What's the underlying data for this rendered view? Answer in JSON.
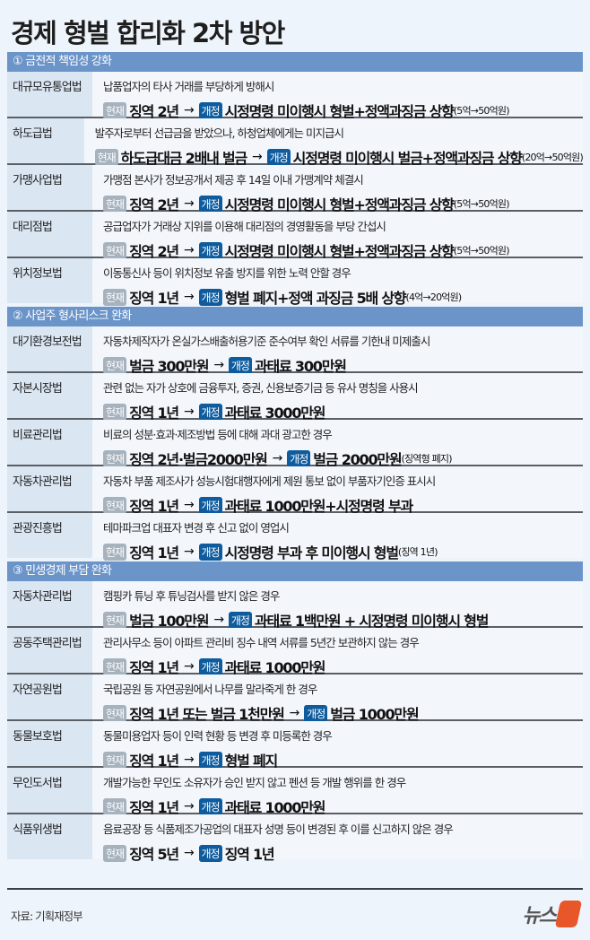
{
  "title": "경제 형벌 합리화 2차 방안",
  "labels": {
    "current": "현재",
    "revised": "개정",
    "arrow": "→"
  },
  "sections": [
    {
      "title": "① 금전적 책임성 강화",
      "rows": [
        {
          "law": "대규모유통업법",
          "desc": "납품업자의 타사 거래를 부당하게 방해시",
          "current": "징역 2년",
          "revised": "시정명령 미이행시 형벌+정액과징금 상향",
          "note": "(5억→50억원)"
        },
        {
          "law": "하도급법",
          "desc": "발주자로부터 선급금을 받았으나, 하청업체에게는 미지급시",
          "current": "하도급대금 2배내 벌금",
          "revised": "시정명령 미이행시 벌금+정액과징금 상향",
          "note": "(20억→50억원)"
        },
        {
          "law": "가맹사업법",
          "desc": "가맹점 본사가 정보공개서 제공 후 14일 이내 가맹계약 체결시",
          "current": "징역 2년",
          "revised": "시정명령 미이행시 형벌+정액과징금 상향",
          "note": "(5억→50억원)"
        },
        {
          "law": "대리점법",
          "desc": "공급업자가 거래상 지위를 이용해 대리점의 경영활동을 부당 간섭시",
          "current": "징역 2년",
          "revised": "시정명령 미이행시 형벌+정액과징금 상향",
          "note": "(5억→50억원)"
        },
        {
          "law": "위치정보법",
          "desc": "이동통신사 등이 위치정보 유출 방지를 위한 노력 안할 경우",
          "current": "징역 1년",
          "revised": "형벌 폐지+정액 과징금 5배 상향",
          "note": "(4억→20억원)"
        }
      ]
    },
    {
      "title": "② 사업주 형사리스크 완화",
      "rows": [
        {
          "law": "대기환경보전법",
          "desc": "자동차제작자가 온실가스배출허용기준 준수여부 확인 서류를 기한내 미제출시",
          "current": "벌금 300만원",
          "revised": "과태료 300만원",
          "note": ""
        },
        {
          "law": "자본시장법",
          "desc": "관련 없는 자가 상호에 금융투자, 증권, 신용보증기금 등 유사 명칭을 사용시",
          "current": "징역 1년",
          "revised": "과태료 3000만원",
          "note": ""
        },
        {
          "law": "비료관리법",
          "desc": "비료의 성분·효과·제조방법 등에 대해 과대 광고한 경우",
          "current": "징역 2년·벌금2000만원",
          "revised": "벌금 2000만원",
          "note": "(징역형 폐지)"
        },
        {
          "law": "자동차관리법",
          "desc": "자동차 부품 제조사가 성능시험대행자에게 제원 통보 없이 부품자기인증 표시시",
          "current": "징역 1년",
          "revised": "과태료 1000만원+시정명령 부과",
          "note": ""
        },
        {
          "law": "관광진흥법",
          "desc": "테마파크업 대표자 변경 후 신고 없이 영업시",
          "current": "징역 1년",
          "revised": "시정명령 부과 후 미이행시 형벌",
          "note": "(징역 1년)"
        }
      ]
    },
    {
      "title": "③ 민생경제 부담 완화",
      "rows": [
        {
          "law": "자동차관리법",
          "desc": "캠핑카 튜닝 후 튜닝검사를 받지 않은 경우",
          "current": "벌금 100만원",
          "revised": "과태료 1백만원 + 시정명령 미이행시 형벌",
          "note": ""
        },
        {
          "law": "공동주택관리법",
          "desc": "관리사무소 등이 아파트 관리비 징수 내역 서류를 5년간 보관하지 않는 경우",
          "current": "징역 1년",
          "revised": "과태료 1000만원",
          "note": ""
        },
        {
          "law": "자연공원법",
          "desc": "국립공원 등 자연공원에서 나무를 말라죽게 한 경우",
          "current": "징역 1년 또는 벌금 1천만원",
          "revised": "벌금 1000만원",
          "note": ""
        },
        {
          "law": "동물보호법",
          "desc": "동물미용업자 등이 인력 현황 등 변경 후 미등록한 경우",
          "current": "징역 1년",
          "revised": "형벌 폐지",
          "note": ""
        },
        {
          "law": "무인도서법",
          "desc": "개발가능한 무인도 소유자가 승인 받지 않고 펜션 등 개발 행위를 한 경우",
          "current": "징역 1년",
          "revised": "과태료 1000만원",
          "note": ""
        },
        {
          "law": "식품위생법",
          "desc": "음료공장 등 식품제조가공업의 대표자 성명 등이 변경된 후 이를 신고하지 않은 경우",
          "current": "징역 5년",
          "revised": "징역 1년",
          "note": ""
        }
      ]
    }
  ],
  "source": "자료: 기획재정부",
  "logo": {
    "text": "뉴스",
    "mark": "1"
  },
  "colors": {
    "section_header": "#6b94c9",
    "badge_current": "#a6b2bd",
    "badge_revised": "#0e5b9d",
    "logo_accent": "#e8572a"
  }
}
